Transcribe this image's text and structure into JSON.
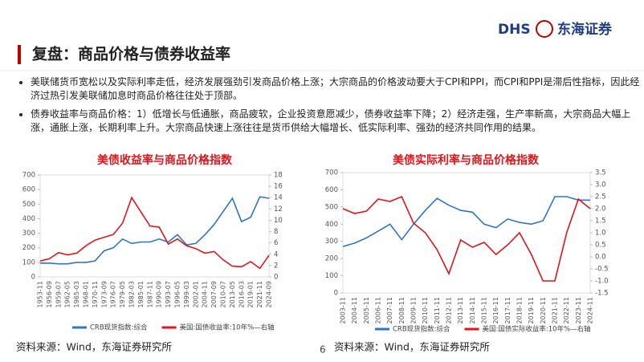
{
  "header": {
    "title": "复盘：商品价格与债券收益率",
    "logo_latin": "DHS",
    "logo_cn": "东海证券"
  },
  "bullets": [
    "美联储货币宽松以及实际利率走低，经济发展强劲引发商品价格上涨；大宗商品的价格波动要大于CPI和PPI，而CPI和PPI是滞后性指标，因此经济过热引发美联储加息时商品价格往往处于顶部。",
    "债券收益率与商品价格：1）低增长与低通胀，商品疲软，企业投资意愿减少，债券收益率下降；2）经济走强，生产率新高，大宗商品大幅上涨，通胀上涨，长期利率上升。大宗商品快速上涨往往是货币供给大幅增长、低实际利率、强劲的经济共同作用的结果。"
  ],
  "chart_data": [
    {
      "type": "line",
      "title": "美债收益率与商品价格指数",
      "categories": [
        "1953-11",
        "1956-09",
        "1959-07",
        "1962-05",
        "1965-03",
        "1968-01",
        "1970-11",
        "1973-09",
        "1976-07",
        "1979-05",
        "1982-03",
        "1985-01",
        "1987-11",
        "1990-09",
        "1993-07",
        "1996-05",
        "1999-03",
        "2002-01",
        "2004-11",
        "2007-09",
        "2010-07",
        "2013-05",
        "2016-03",
        "2019-01",
        "2021-11",
        "2024-09"
      ],
      "series": [
        {
          "name": "CRB现货指数:综合",
          "color": "#2e75c8",
          "values": [
            95,
            95,
            90,
            90,
            100,
            100,
            110,
            180,
            200,
            260,
            230,
            240,
            240,
            260,
            240,
            290,
            220,
            230,
            290,
            360,
            450,
            540,
            380,
            410,
            550,
            540
          ]
        },
        {
          "name": "美国:国债收益率:10年%—右轴",
          "color": "#e0151b",
          "axis": "y2",
          "values": [
            2.8,
            3.2,
            4.3,
            3.9,
            4.2,
            5.5,
            6.5,
            7.0,
            7.5,
            9.5,
            14.0,
            11.5,
            9.0,
            8.8,
            5.8,
            6.7,
            5.5,
            5.0,
            4.2,
            4.5,
            3.0,
            1.9,
            1.8,
            2.7,
            1.5,
            3.8
          ]
        }
      ],
      "ylim": [
        0,
        700
      ],
      "yticks": [
        0,
        100,
        200,
        300,
        400,
        500,
        600,
        700
      ],
      "y2lim": [
        0,
        18
      ],
      "y2ticks": [
        0,
        2,
        4,
        6,
        8,
        10,
        12,
        14,
        16,
        18
      ],
      "grid": false
    },
    {
      "type": "line",
      "title": "美债实际利率与商品价格指数",
      "categories": [
        "2003-11",
        "2004-11",
        "2005-11",
        "2006-11",
        "2007-11",
        "2008-11",
        "2009-11",
        "2010-11",
        "2011-11",
        "2012-11",
        "2013-11",
        "2014-11",
        "2015-11",
        "2016-11",
        "2017-11",
        "2018-11",
        "2019-11",
        "2020-11",
        "2021-11",
        "2022-11",
        "2023-11",
        "2024-11"
      ],
      "series": [
        {
          "name": "CRB现货指数:综合",
          "color": "#2e75c8",
          "values": [
            270,
            290,
            320,
            360,
            400,
            310,
            400,
            480,
            550,
            510,
            480,
            470,
            400,
            380,
            430,
            410,
            400,
            420,
            560,
            560,
            540,
            540
          ]
        },
        {
          "name": "美国:国债实际收益率:10年%—右轴",
          "color": "#e0151b",
          "axis": "y2",
          "values": [
            2.0,
            1.8,
            1.9,
            2.4,
            2.3,
            2.5,
            1.4,
            1.0,
            0.3,
            -0.7,
            0.7,
            0.4,
            0.6,
            0.1,
            0.5,
            1.0,
            0.1,
            -1.0,
            -1.0,
            1.0,
            2.4,
            2.0
          ]
        }
      ],
      "ylim": [
        0,
        700
      ],
      "yticks": [
        0,
        100,
        200,
        300,
        400,
        500,
        600,
        700
      ],
      "y2lim": [
        -1.5,
        3.5
      ],
      "y2ticks": [
        {
          "value": 3.5,
          "label": "3.5"
        },
        {
          "value": 3,
          "label": "3.0"
        },
        {
          "value": 2.5,
          "label": "2.5"
        },
        {
          "value": 2,
          "label": "2.0"
        },
        {
          "value": 1.5,
          "label": "1.5"
        },
        {
          "value": 1,
          "label": "1.0"
        },
        {
          "value": 0.5,
          "label": "0.5"
        },
        {
          "value": 0,
          "label": "0.0"
        },
        {
          "value": -0.5,
          "label": "-0.5"
        },
        {
          "value": -1,
          "label": "-1.0"
        },
        {
          "value": -1.5,
          "label": "-1.5"
        }
      ],
      "grid": false
    }
  ],
  "sources": [
    "资料来源：Wind，东海证券研究所",
    "资料来源：Wind，东海证券研究所"
  ],
  "page_number": "6"
}
